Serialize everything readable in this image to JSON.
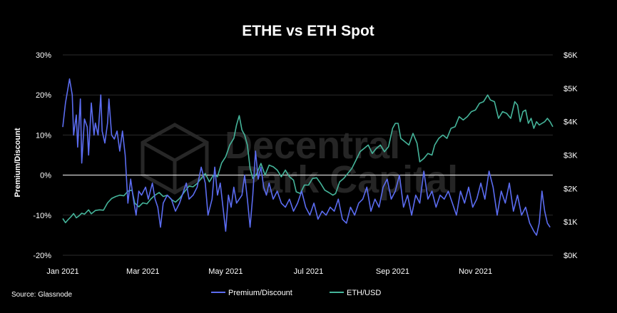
{
  "chart_data": {
    "type": "line",
    "title": "ETHE vs ETH Spot",
    "source": "Source: Glassnode",
    "watermark": [
      "Decentral",
      "Park Capital"
    ],
    "xlabel": "",
    "x_ticks": [
      "Jan 2021",
      "Mar 2021",
      "May 2021",
      "Jul 2021",
      "Sep 2021",
      "Nov 2021"
    ],
    "x_range": [
      "2021-01-01",
      "2021-12-28"
    ],
    "left_axis": {
      "label": "Premium/Discount",
      "ticks": [
        "30%",
        "20%",
        "10%",
        "0%",
        "-10%",
        "-20%"
      ],
      "ylim": [
        -20,
        30
      ]
    },
    "right_axis": {
      "label": "",
      "ticks": [
        "$6K",
        "$5K",
        "$4K",
        "$3K",
        "$2K",
        "$1K",
        "$0K"
      ],
      "ylim": [
        0,
        6000
      ]
    },
    "zero_line": true,
    "grid": "horizontal",
    "legend_position": "bottom",
    "series": [
      {
        "name": "Premium/Discount",
        "axis": "left",
        "color": "#5b6cf0",
        "points": [
          [
            "2021-01-01",
            12
          ],
          [
            "2021-01-03",
            18
          ],
          [
            "2021-01-05",
            22
          ],
          [
            "2021-01-06",
            24
          ],
          [
            "2021-01-08",
            20
          ],
          [
            "2021-01-09",
            10
          ],
          [
            "2021-01-11",
            15
          ],
          [
            "2021-01-12",
            7
          ],
          [
            "2021-01-14",
            19
          ],
          [
            "2021-01-15",
            3
          ],
          [
            "2021-01-17",
            14
          ],
          [
            "2021-01-19",
            12
          ],
          [
            "2021-01-20",
            5
          ],
          [
            "2021-01-22",
            18
          ],
          [
            "2021-01-24",
            10
          ],
          [
            "2021-01-25",
            13
          ],
          [
            "2021-01-27",
            10
          ],
          [
            "2021-01-29",
            20
          ],
          [
            "2021-01-30",
            11
          ],
          [
            "2021-02-01",
            8
          ],
          [
            "2021-02-03",
            13
          ],
          [
            "2021-02-04",
            19
          ],
          [
            "2021-02-06",
            10
          ],
          [
            "2021-02-08",
            9
          ],
          [
            "2021-02-10",
            11
          ],
          [
            "2021-02-12",
            6
          ],
          [
            "2021-02-14",
            11
          ],
          [
            "2021-02-16",
            5
          ],
          [
            "2021-02-18",
            -7
          ],
          [
            "2021-02-20",
            -1
          ],
          [
            "2021-02-22",
            -6
          ],
          [
            "2021-02-24",
            -10
          ],
          [
            "2021-02-26",
            -4
          ],
          [
            "2021-02-28",
            -5
          ],
          [
            "2021-03-03",
            -3
          ],
          [
            "2021-03-05",
            -6
          ],
          [
            "2021-03-08",
            -2
          ],
          [
            "2021-03-10",
            -6
          ],
          [
            "2021-03-12",
            -8
          ],
          [
            "2021-03-14",
            -13
          ],
          [
            "2021-03-16",
            -7
          ],
          [
            "2021-03-19",
            -5
          ],
          [
            "2021-03-22",
            -6
          ],
          [
            "2021-03-25",
            -9
          ],
          [
            "2021-03-28",
            -7
          ],
          [
            "2021-03-31",
            -4
          ],
          [
            "2021-04-02",
            -2
          ],
          [
            "2021-04-04",
            -6
          ],
          [
            "2021-04-07",
            -5
          ],
          [
            "2021-04-10",
            -3
          ],
          [
            "2021-04-13",
            2
          ],
          [
            "2021-04-16",
            -2
          ],
          [
            "2021-04-18",
            -10
          ],
          [
            "2021-04-21",
            -6
          ],
          [
            "2021-04-23",
            2
          ],
          [
            "2021-04-25",
            -5
          ],
          [
            "2021-04-27",
            -2
          ],
          [
            "2021-04-29",
            -8
          ],
          [
            "2021-05-01",
            -14
          ],
          [
            "2021-05-03",
            -5
          ],
          [
            "2021-05-05",
            -8
          ],
          [
            "2021-05-07",
            -3
          ],
          [
            "2021-05-09",
            -7
          ],
          [
            "2021-05-11",
            -6
          ],
          [
            "2021-05-13",
            -5
          ],
          [
            "2021-05-15",
            0
          ],
          [
            "2021-05-17",
            -6
          ],
          [
            "2021-05-19",
            -13
          ],
          [
            "2021-05-21",
            -5
          ],
          [
            "2021-05-23",
            6
          ],
          [
            "2021-05-25",
            -1
          ],
          [
            "2021-05-27",
            2
          ],
          [
            "2021-05-29",
            -3
          ],
          [
            "2021-05-31",
            -5
          ],
          [
            "2021-06-02",
            -2
          ],
          [
            "2021-06-05",
            -6
          ],
          [
            "2021-06-08",
            -4
          ],
          [
            "2021-06-11",
            -7
          ],
          [
            "2021-06-14",
            -8
          ],
          [
            "2021-06-17",
            -6
          ],
          [
            "2021-06-20",
            -9
          ],
          [
            "2021-06-23",
            -7
          ],
          [
            "2021-06-26",
            -4
          ],
          [
            "2021-06-29",
            -8
          ],
          [
            "2021-07-02",
            -10
          ],
          [
            "2021-07-05",
            -7
          ],
          [
            "2021-07-08",
            -11
          ],
          [
            "2021-07-11",
            -9
          ],
          [
            "2021-07-14",
            -10
          ],
          [
            "2021-07-17",
            -8
          ],
          [
            "2021-07-20",
            -9
          ],
          [
            "2021-07-23",
            -6
          ],
          [
            "2021-07-26",
            -11
          ],
          [
            "2021-07-29",
            -12
          ],
          [
            "2021-08-01",
            -8
          ],
          [
            "2021-08-04",
            -10
          ],
          [
            "2021-08-07",
            -7
          ],
          [
            "2021-08-10",
            -6
          ],
          [
            "2021-08-13",
            -3
          ],
          [
            "2021-08-16",
            -9
          ],
          [
            "2021-08-19",
            -6
          ],
          [
            "2021-08-22",
            -8
          ],
          [
            "2021-08-25",
            -3
          ],
          [
            "2021-08-28",
            -1
          ],
          [
            "2021-08-31",
            -6
          ],
          [
            "2021-09-03",
            -4
          ],
          [
            "2021-09-06",
            0
          ],
          [
            "2021-09-09",
            -8
          ],
          [
            "2021-09-12",
            -5
          ],
          [
            "2021-09-15",
            -10
          ],
          [
            "2021-09-18",
            -5
          ],
          [
            "2021-09-21",
            -7
          ],
          [
            "2021-09-24",
            1
          ],
          [
            "2021-09-27",
            -6
          ],
          [
            "2021-09-30",
            -4
          ],
          [
            "2021-10-03",
            -8
          ],
          [
            "2021-10-06",
            -5
          ],
          [
            "2021-10-09",
            -6
          ],
          [
            "2021-10-12",
            -4
          ],
          [
            "2021-10-15",
            -7
          ],
          [
            "2021-10-18",
            -10
          ],
          [
            "2021-10-21",
            -4
          ],
          [
            "2021-10-24",
            -7
          ],
          [
            "2021-10-27",
            -3
          ],
          [
            "2021-10-30",
            -8
          ],
          [
            "2021-11-02",
            -6
          ],
          [
            "2021-11-05",
            -2
          ],
          [
            "2021-11-08",
            -6
          ],
          [
            "2021-11-11",
            1
          ],
          [
            "2021-11-14",
            -3
          ],
          [
            "2021-11-17",
            -10
          ],
          [
            "2021-11-20",
            -4
          ],
          [
            "2021-11-23",
            -7
          ],
          [
            "2021-11-26",
            -2
          ],
          [
            "2021-11-29",
            -9
          ],
          [
            "2021-12-02",
            -5
          ],
          [
            "2021-12-05",
            -10
          ],
          [
            "2021-12-08",
            -8
          ],
          [
            "2021-12-11",
            -12
          ],
          [
            "2021-12-14",
            -14
          ],
          [
            "2021-12-16",
            -15
          ],
          [
            "2021-12-18",
            -12
          ],
          [
            "2021-12-20",
            -4
          ],
          [
            "2021-12-22",
            -9
          ],
          [
            "2021-12-24",
            -12
          ],
          [
            "2021-12-26",
            -13
          ]
        ]
      },
      {
        "name": "ETH/USD",
        "axis": "right",
        "color": "#45b49a",
        "points": [
          [
            "2021-01-01",
            1100
          ],
          [
            "2021-01-03",
            975
          ],
          [
            "2021-01-05",
            1070
          ],
          [
            "2021-01-07",
            1150
          ],
          [
            "2021-01-09",
            1250
          ],
          [
            "2021-01-11",
            1120
          ],
          [
            "2021-01-13",
            1180
          ],
          [
            "2021-01-15",
            1260
          ],
          [
            "2021-01-17",
            1230
          ],
          [
            "2021-01-20",
            1360
          ],
          [
            "2021-01-22",
            1240
          ],
          [
            "2021-01-25",
            1340
          ],
          [
            "2021-01-28",
            1360
          ],
          [
            "2021-01-31",
            1350
          ],
          [
            "2021-02-03",
            1570
          ],
          [
            "2021-02-06",
            1700
          ],
          [
            "2021-02-09",
            1760
          ],
          [
            "2021-02-12",
            1800
          ],
          [
            "2021-02-15",
            1780
          ],
          [
            "2021-02-18",
            1920
          ],
          [
            "2021-02-21",
            1950
          ],
          [
            "2021-02-23",
            1560
          ],
          [
            "2021-02-26",
            1450
          ],
          [
            "2021-03-01",
            1570
          ],
          [
            "2021-03-04",
            1540
          ],
          [
            "2021-03-07",
            1690
          ],
          [
            "2021-03-10",
            1800
          ],
          [
            "2021-03-13",
            1880
          ],
          [
            "2021-03-16",
            1760
          ],
          [
            "2021-03-19",
            1800
          ],
          [
            "2021-03-22",
            1670
          ],
          [
            "2021-03-25",
            1590
          ],
          [
            "2021-03-28",
            1700
          ],
          [
            "2021-04-01",
            1920
          ],
          [
            "2021-04-04",
            2070
          ],
          [
            "2021-04-07",
            2050
          ],
          [
            "2021-04-10",
            2150
          ],
          [
            "2021-04-13",
            2300
          ],
          [
            "2021-04-16",
            2450
          ],
          [
            "2021-04-19",
            2200
          ],
          [
            "2021-04-22",
            2400
          ],
          [
            "2021-04-25",
            2350
          ],
          [
            "2021-04-28",
            2760
          ],
          [
            "2021-05-01",
            2950
          ],
          [
            "2021-05-04",
            3300
          ],
          [
            "2021-05-07",
            3500
          ],
          [
            "2021-05-09",
            3900
          ],
          [
            "2021-05-11",
            4180
          ],
          [
            "2021-05-13",
            3750
          ],
          [
            "2021-05-15",
            3600
          ],
          [
            "2021-05-17",
            3300
          ],
          [
            "2021-05-19",
            2600
          ],
          [
            "2021-05-21",
            2300
          ],
          [
            "2021-05-24",
            2450
          ],
          [
            "2021-05-27",
            2750
          ],
          [
            "2021-05-30",
            2400
          ],
          [
            "2021-06-02",
            2700
          ],
          [
            "2021-06-05",
            2650
          ],
          [
            "2021-06-08",
            2550
          ],
          [
            "2021-06-11",
            2350
          ],
          [
            "2021-06-14",
            2550
          ],
          [
            "2021-06-17",
            2350
          ],
          [
            "2021-06-20",
            2250
          ],
          [
            "2021-06-22",
            1900
          ],
          [
            "2021-06-25",
            1850
          ],
          [
            "2021-06-28",
            2100
          ],
          [
            "2021-07-01",
            2100
          ],
          [
            "2021-07-04",
            2300
          ],
          [
            "2021-07-07",
            2320
          ],
          [
            "2021-07-10",
            2150
          ],
          [
            "2021-07-13",
            1950
          ],
          [
            "2021-07-16",
            1880
          ],
          [
            "2021-07-19",
            1800
          ],
          [
            "2021-07-21",
            1850
          ],
          [
            "2021-07-24",
            2200
          ],
          [
            "2021-07-27",
            2300
          ],
          [
            "2021-07-30",
            2450
          ],
          [
            "2021-08-02",
            2600
          ],
          [
            "2021-08-05",
            2850
          ],
          [
            "2021-08-08",
            3100
          ],
          [
            "2021-08-11",
            3200
          ],
          [
            "2021-08-14",
            3300
          ],
          [
            "2021-08-17",
            3050
          ],
          [
            "2021-08-20",
            3200
          ],
          [
            "2021-08-23",
            3300
          ],
          [
            "2021-08-26",
            3100
          ],
          [
            "2021-08-29",
            3250
          ],
          [
            "2021-09-01",
            3800
          ],
          [
            "2021-09-03",
            3950
          ],
          [
            "2021-09-05",
            3950
          ],
          [
            "2021-09-07",
            3500
          ],
          [
            "2021-09-10",
            3400
          ],
          [
            "2021-09-13",
            3300
          ],
          [
            "2021-09-16",
            3650
          ],
          [
            "2021-09-19",
            3350
          ],
          [
            "2021-09-21",
            2800
          ],
          [
            "2021-09-24",
            2900
          ],
          [
            "2021-09-27",
            3050
          ],
          [
            "2021-09-30",
            3000
          ],
          [
            "2021-10-02",
            3300
          ],
          [
            "2021-10-05",
            3500
          ],
          [
            "2021-10-08",
            3600
          ],
          [
            "2021-10-11",
            3500
          ],
          [
            "2021-10-14",
            3800
          ],
          [
            "2021-10-17",
            3850
          ],
          [
            "2021-10-20",
            4150
          ],
          [
            "2021-10-23",
            4050
          ],
          [
            "2021-10-26",
            4150
          ],
          [
            "2021-10-29",
            4300
          ],
          [
            "2021-11-01",
            4350
          ],
          [
            "2021-11-04",
            4550
          ],
          [
            "2021-11-07",
            4600
          ],
          [
            "2021-11-10",
            4800
          ],
          [
            "2021-11-12",
            4650
          ],
          [
            "2021-11-15",
            4600
          ],
          [
            "2021-11-18",
            4100
          ],
          [
            "2021-11-21",
            4300
          ],
          [
            "2021-11-24",
            4250
          ],
          [
            "2021-11-27",
            4100
          ],
          [
            "2021-11-30",
            4600
          ],
          [
            "2021-12-02",
            4500
          ],
          [
            "2021-12-04",
            4000
          ],
          [
            "2021-12-06",
            4300
          ],
          [
            "2021-12-08",
            4350
          ],
          [
            "2021-12-10",
            3950
          ],
          [
            "2021-12-12",
            4100
          ],
          [
            "2021-12-14",
            3800
          ],
          [
            "2021-12-16",
            4000
          ],
          [
            "2021-12-18",
            3900
          ],
          [
            "2021-12-20",
            3950
          ],
          [
            "2021-12-22",
            4000
          ],
          [
            "2021-12-24",
            4100
          ],
          [
            "2021-12-26",
            4000
          ],
          [
            "2021-12-28",
            3850
          ]
        ]
      }
    ]
  }
}
